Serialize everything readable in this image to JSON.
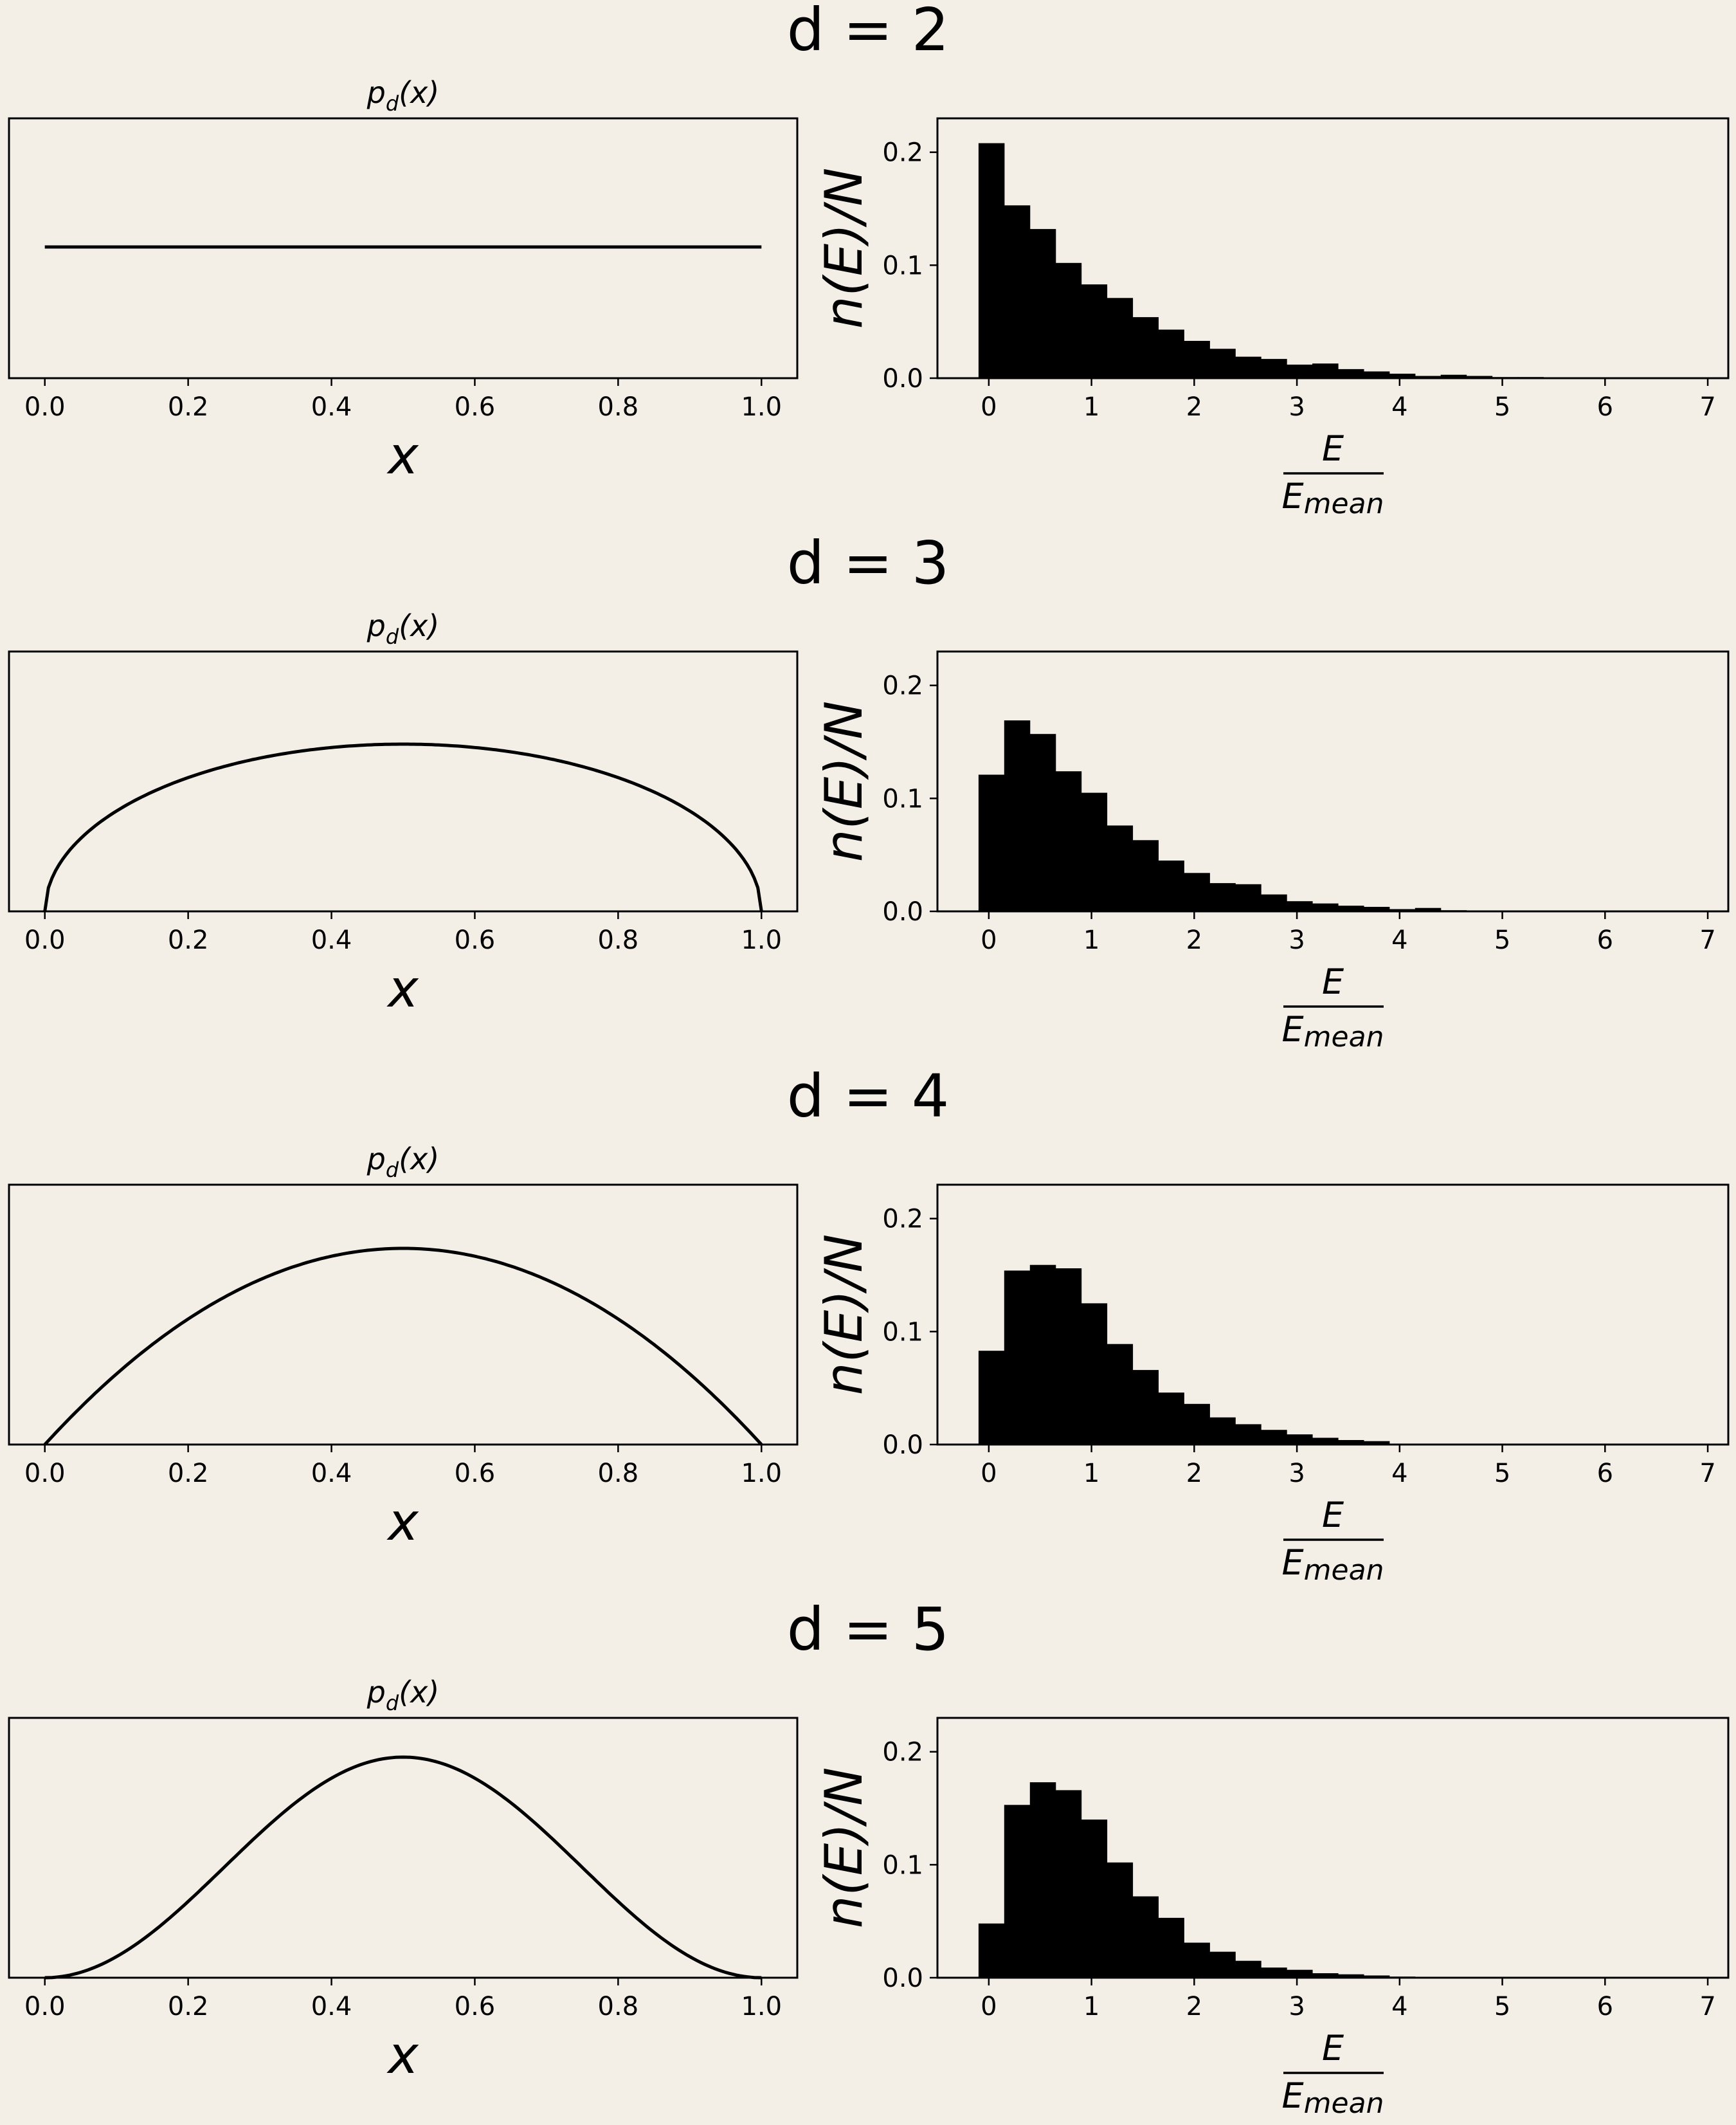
{
  "chart_data": [
    {
      "row_title": "d = 2",
      "density": {
        "type": "line",
        "title": "p_d(x)",
        "title_main": "p",
        "title_sub": "d",
        "title_tail": "(x)",
        "xlabel": "x",
        "xlim": [
          -0.05,
          1.05
        ],
        "xticks": [
          "0.0",
          "0.2",
          "0.4",
          "0.6",
          "0.8",
          "1.0"
        ],
        "d": 2
      },
      "histogram": {
        "type": "bar",
        "ylabel": "n(E)/N",
        "xlabel_num": "E",
        "xlabel_den_main": "E",
        "xlabel_den_sub": "mean",
        "xlim": [
          -0.5,
          7.2
        ],
        "ylim": [
          0,
          0.23
        ],
        "xticks": [
          "0",
          "1",
          "2",
          "3",
          "4",
          "5",
          "6",
          "7"
        ],
        "yticks": [
          "0.0",
          "0.1",
          "0.2"
        ],
        "bin_start": -0.1,
        "bin_width": 0.25,
        "values": [
          0.208,
          0.153,
          0.132,
          0.102,
          0.083,
          0.071,
          0.054,
          0.043,
          0.033,
          0.026,
          0.019,
          0.017,
          0.012,
          0.013,
          0.008,
          0.006,
          0.004,
          0.002,
          0.003,
          0.002,
          0.001,
          0.001,
          0.0008,
          0.0004
        ]
      }
    },
    {
      "row_title": "d = 3",
      "density": {
        "type": "line",
        "title": "p_d(x)",
        "title_main": "p",
        "title_sub": "d",
        "title_tail": "(x)",
        "xlabel": "x",
        "xlim": [
          -0.05,
          1.05
        ],
        "xticks": [
          "0.0",
          "0.2",
          "0.4",
          "0.6",
          "0.8",
          "1.0"
        ],
        "d": 3
      },
      "histogram": {
        "type": "bar",
        "ylabel": "n(E)/N",
        "xlabel_num": "E",
        "xlabel_den_main": "E",
        "xlabel_den_sub": "mean",
        "xlim": [
          -0.5,
          7.2
        ],
        "ylim": [
          0,
          0.23
        ],
        "xticks": [
          "0",
          "1",
          "2",
          "3",
          "4",
          "5",
          "6",
          "7"
        ],
        "yticks": [
          "0.0",
          "0.1",
          "0.2"
        ],
        "bin_start": -0.1,
        "bin_width": 0.25,
        "values": [
          0.121,
          0.169,
          0.157,
          0.124,
          0.105,
          0.076,
          0.063,
          0.045,
          0.034,
          0.025,
          0.024,
          0.015,
          0.009,
          0.007,
          0.005,
          0.004,
          0.002,
          0.003,
          0.001,
          0.0008,
          0.0004
        ]
      }
    },
    {
      "row_title": "d = 4",
      "density": {
        "type": "line",
        "title": "p_d(x)",
        "title_main": "p",
        "title_sub": "d",
        "title_tail": "(x)",
        "xlabel": "x",
        "xlim": [
          -0.05,
          1.05
        ],
        "xticks": [
          "0.0",
          "0.2",
          "0.4",
          "0.6",
          "0.8",
          "1.0"
        ],
        "d": 4
      },
      "histogram": {
        "type": "bar",
        "ylabel": "n(E)/N",
        "xlabel_num": "E",
        "xlabel_den_main": "E",
        "xlabel_den_sub": "mean",
        "xlim": [
          -0.5,
          7.2
        ],
        "ylim": [
          0,
          0.23
        ],
        "xticks": [
          "0",
          "1",
          "2",
          "3",
          "4",
          "5",
          "6",
          "7"
        ],
        "yticks": [
          "0.0",
          "0.1",
          "0.2"
        ],
        "bin_start": -0.1,
        "bin_width": 0.25,
        "values": [
          0.083,
          0.154,
          0.159,
          0.156,
          0.125,
          0.089,
          0.066,
          0.046,
          0.036,
          0.024,
          0.018,
          0.013,
          0.009,
          0.006,
          0.004,
          0.003
        ]
      }
    },
    {
      "row_title": "d = 5",
      "density": {
        "type": "line",
        "title": "p_d(x)",
        "title_main": "p",
        "title_sub": "d",
        "title_tail": "(x)",
        "xlabel": "x",
        "xlim": [
          -0.05,
          1.05
        ],
        "xticks": [
          "0.0",
          "0.2",
          "0.4",
          "0.6",
          "0.8",
          "1.0"
        ],
        "d": 5
      },
      "histogram": {
        "type": "bar",
        "ylabel": "n(E)/N",
        "xlabel_num": "E",
        "xlabel_den_main": "E",
        "xlabel_den_sub": "mean",
        "xlim": [
          -0.5,
          7.2
        ],
        "ylim": [
          0,
          0.23
        ],
        "xticks": [
          "0",
          "1",
          "2",
          "3",
          "4",
          "5",
          "6",
          "7"
        ],
        "yticks": [
          "0.0",
          "0.1",
          "0.2"
        ],
        "bin_start": -0.1,
        "bin_width": 0.25,
        "values": [
          0.048,
          0.153,
          0.173,
          0.166,
          0.14,
          0.102,
          0.072,
          0.053,
          0.031,
          0.023,
          0.015,
          0.009,
          0.007,
          0.004,
          0.003,
          0.002,
          0.001
        ]
      }
    }
  ]
}
